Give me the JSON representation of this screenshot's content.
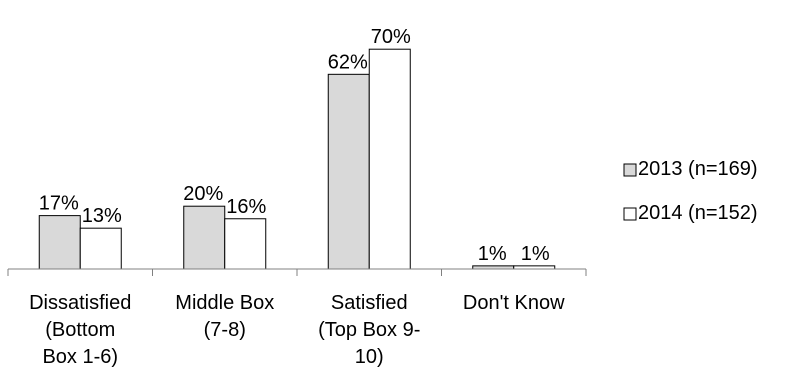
{
  "chart_data": {
    "type": "bar",
    "categories": [
      [
        "Dissatisfied",
        "(Bottom",
        "Box 1-6)"
      ],
      [
        "Middle Box",
        "(7-8)"
      ],
      [
        "Satisfied",
        "(Top Box 9-",
        "10)"
      ],
      [
        "Don't Know"
      ]
    ],
    "series": [
      {
        "name": "2013 (n=169)",
        "values": [
          17,
          20,
          62,
          1
        ],
        "labels": [
          "17%",
          "20%",
          "62%",
          "1%"
        ],
        "color": "#d9d9d9"
      },
      {
        "name": "2014 (n=152)",
        "values": [
          13,
          16,
          70,
          1
        ],
        "labels": [
          "13%",
          "16%",
          "70%",
          "1%"
        ],
        "color": "#ffffff"
      }
    ],
    "ylim": [
      0,
      70
    ],
    "grid": false,
    "legend": "right",
    "bar_outline": "#000000",
    "axis_color": "#808080"
  }
}
